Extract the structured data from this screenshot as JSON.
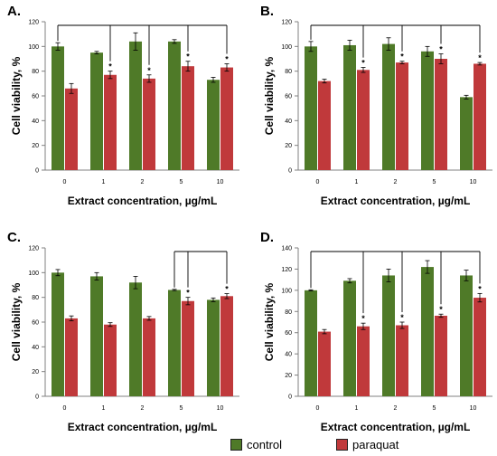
{
  "colors": {
    "control": "#4f7a28",
    "paraquat": "#c0393b",
    "axis": "#808080",
    "bracket": "#000000"
  },
  "legend": [
    {
      "name": "control",
      "color": "#4f7a28"
    },
    {
      "name": "paraquat",
      "color": "#c0393b"
    }
  ],
  "chart_data": [
    {
      "type": "bar",
      "panel": "A.",
      "categories": [
        "0",
        "1",
        "2",
        "5",
        "10"
      ],
      "xlabel": "Extract concentration, µg/mL",
      "ylabel": "Cell viability, %",
      "ylim": [
        0,
        120
      ],
      "yticks": [
        0,
        20,
        40,
        60,
        80,
        100,
        120
      ],
      "series": [
        {
          "name": "control",
          "values": [
            100,
            95,
            104,
            104,
            73
          ],
          "errors": [
            3,
            1,
            7,
            1.5,
            2
          ]
        },
        {
          "name": "paraquat",
          "values": [
            66,
            77,
            74,
            84,
            83
          ],
          "errors": [
            4,
            3,
            3,
            4,
            3
          ]
        }
      ],
      "significant": [
        false,
        true,
        true,
        true,
        true
      ],
      "bracket_from": 0
    },
    {
      "type": "bar",
      "panel": "B.",
      "categories": [
        "0",
        "1",
        "2",
        "5",
        "10"
      ],
      "xlabel": "Extract concentration, µg/mL",
      "ylabel": "Cell viability, %",
      "ylim": [
        0,
        120
      ],
      "yticks": [
        0,
        20,
        40,
        60,
        80,
        100,
        120
      ],
      "series": [
        {
          "name": "control",
          "values": [
            100,
            101,
            102,
            96,
            59
          ],
          "errors": [
            4,
            4,
            5,
            4,
            1.5
          ]
        },
        {
          "name": "paraquat",
          "values": [
            72,
            81,
            87,
            90,
            86
          ],
          "errors": [
            1.5,
            2,
            1,
            4,
            1
          ]
        }
      ],
      "significant": [
        false,
        true,
        true,
        true,
        true
      ],
      "bracket_from": 0
    },
    {
      "type": "bar",
      "panel": "C.",
      "categories": [
        "0",
        "1",
        "2",
        "5",
        "10"
      ],
      "xlabel": "Extract concentration, µg/mL",
      "ylabel": "Cell viability, %",
      "ylim": [
        0,
        120
      ],
      "yticks": [
        0,
        20,
        40,
        60,
        80,
        100,
        120
      ],
      "series": [
        {
          "name": "control",
          "values": [
            100,
            97,
            92,
            86,
            78
          ],
          "errors": [
            2.5,
            3,
            5,
            0.5,
            1.5
          ]
        },
        {
          "name": "paraquat",
          "values": [
            63,
            58,
            63,
            77,
            81
          ],
          "errors": [
            2,
            1.5,
            1.5,
            3,
            2
          ]
        }
      ],
      "significant": [
        false,
        false,
        false,
        true,
        true
      ],
      "bracket_from": 3
    },
    {
      "type": "bar",
      "panel": "D.",
      "categories": [
        "0",
        "1",
        "2",
        "5",
        "10"
      ],
      "xlabel": "Extract concentration, µg/mL",
      "ylabel": "Cell viability, %",
      "ylim": [
        0,
        140
      ],
      "yticks": [
        0,
        20,
        40,
        60,
        80,
        100,
        120,
        140
      ],
      "series": [
        {
          "name": "control",
          "values": [
            100,
            109,
            114,
            122,
            114
          ],
          "errors": [
            0.5,
            2,
            6,
            6,
            5
          ]
        },
        {
          "name": "paraquat",
          "values": [
            61,
            66,
            67,
            76,
            93
          ],
          "errors": [
            2,
            3,
            3,
            1.5,
            4
          ]
        }
      ],
      "significant": [
        false,
        true,
        true,
        true,
        true
      ],
      "bracket_from": 0
    }
  ]
}
